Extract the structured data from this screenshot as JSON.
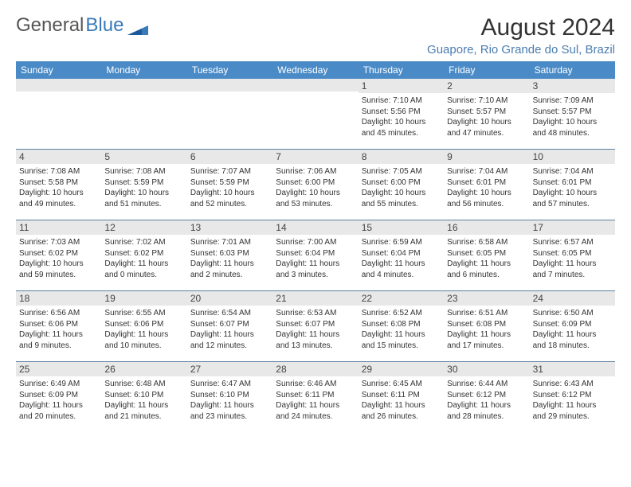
{
  "logo": {
    "word1": "General",
    "word2": "Blue"
  },
  "title": "August 2024",
  "location": "Guapore, Rio Grande do Sul, Brazil",
  "weekdays": [
    "Sunday",
    "Monday",
    "Tuesday",
    "Wednesday",
    "Thursday",
    "Friday",
    "Saturday"
  ],
  "colors": {
    "header_bg": "#4a8bc7",
    "daynum_bg": "#e8e8e8",
    "row_border": "#5a7fa0",
    "location_text": "#4a7db0",
    "logo_blue": "#3a7ab8"
  },
  "weeks": [
    [
      {
        "empty": true
      },
      {
        "empty": true
      },
      {
        "empty": true
      },
      {
        "empty": true
      },
      {
        "num": "1",
        "sunrise": "Sunrise: 7:10 AM",
        "sunset": "Sunset: 5:56 PM",
        "daylight1": "Daylight: 10 hours",
        "daylight2": "and 45 minutes."
      },
      {
        "num": "2",
        "sunrise": "Sunrise: 7:10 AM",
        "sunset": "Sunset: 5:57 PM",
        "daylight1": "Daylight: 10 hours",
        "daylight2": "and 47 minutes."
      },
      {
        "num": "3",
        "sunrise": "Sunrise: 7:09 AM",
        "sunset": "Sunset: 5:57 PM",
        "daylight1": "Daylight: 10 hours",
        "daylight2": "and 48 minutes."
      }
    ],
    [
      {
        "num": "4",
        "sunrise": "Sunrise: 7:08 AM",
        "sunset": "Sunset: 5:58 PM",
        "daylight1": "Daylight: 10 hours",
        "daylight2": "and 49 minutes."
      },
      {
        "num": "5",
        "sunrise": "Sunrise: 7:08 AM",
        "sunset": "Sunset: 5:59 PM",
        "daylight1": "Daylight: 10 hours",
        "daylight2": "and 51 minutes."
      },
      {
        "num": "6",
        "sunrise": "Sunrise: 7:07 AM",
        "sunset": "Sunset: 5:59 PM",
        "daylight1": "Daylight: 10 hours",
        "daylight2": "and 52 minutes."
      },
      {
        "num": "7",
        "sunrise": "Sunrise: 7:06 AM",
        "sunset": "Sunset: 6:00 PM",
        "daylight1": "Daylight: 10 hours",
        "daylight2": "and 53 minutes."
      },
      {
        "num": "8",
        "sunrise": "Sunrise: 7:05 AM",
        "sunset": "Sunset: 6:00 PM",
        "daylight1": "Daylight: 10 hours",
        "daylight2": "and 55 minutes."
      },
      {
        "num": "9",
        "sunrise": "Sunrise: 7:04 AM",
        "sunset": "Sunset: 6:01 PM",
        "daylight1": "Daylight: 10 hours",
        "daylight2": "and 56 minutes."
      },
      {
        "num": "10",
        "sunrise": "Sunrise: 7:04 AM",
        "sunset": "Sunset: 6:01 PM",
        "daylight1": "Daylight: 10 hours",
        "daylight2": "and 57 minutes."
      }
    ],
    [
      {
        "num": "11",
        "sunrise": "Sunrise: 7:03 AM",
        "sunset": "Sunset: 6:02 PM",
        "daylight1": "Daylight: 10 hours",
        "daylight2": "and 59 minutes."
      },
      {
        "num": "12",
        "sunrise": "Sunrise: 7:02 AM",
        "sunset": "Sunset: 6:02 PM",
        "daylight1": "Daylight: 11 hours",
        "daylight2": "and 0 minutes."
      },
      {
        "num": "13",
        "sunrise": "Sunrise: 7:01 AM",
        "sunset": "Sunset: 6:03 PM",
        "daylight1": "Daylight: 11 hours",
        "daylight2": "and 2 minutes."
      },
      {
        "num": "14",
        "sunrise": "Sunrise: 7:00 AM",
        "sunset": "Sunset: 6:04 PM",
        "daylight1": "Daylight: 11 hours",
        "daylight2": "and 3 minutes."
      },
      {
        "num": "15",
        "sunrise": "Sunrise: 6:59 AM",
        "sunset": "Sunset: 6:04 PM",
        "daylight1": "Daylight: 11 hours",
        "daylight2": "and 4 minutes."
      },
      {
        "num": "16",
        "sunrise": "Sunrise: 6:58 AM",
        "sunset": "Sunset: 6:05 PM",
        "daylight1": "Daylight: 11 hours",
        "daylight2": "and 6 minutes."
      },
      {
        "num": "17",
        "sunrise": "Sunrise: 6:57 AM",
        "sunset": "Sunset: 6:05 PM",
        "daylight1": "Daylight: 11 hours",
        "daylight2": "and 7 minutes."
      }
    ],
    [
      {
        "num": "18",
        "sunrise": "Sunrise: 6:56 AM",
        "sunset": "Sunset: 6:06 PM",
        "daylight1": "Daylight: 11 hours",
        "daylight2": "and 9 minutes."
      },
      {
        "num": "19",
        "sunrise": "Sunrise: 6:55 AM",
        "sunset": "Sunset: 6:06 PM",
        "daylight1": "Daylight: 11 hours",
        "daylight2": "and 10 minutes."
      },
      {
        "num": "20",
        "sunrise": "Sunrise: 6:54 AM",
        "sunset": "Sunset: 6:07 PM",
        "daylight1": "Daylight: 11 hours",
        "daylight2": "and 12 minutes."
      },
      {
        "num": "21",
        "sunrise": "Sunrise: 6:53 AM",
        "sunset": "Sunset: 6:07 PM",
        "daylight1": "Daylight: 11 hours",
        "daylight2": "and 13 minutes."
      },
      {
        "num": "22",
        "sunrise": "Sunrise: 6:52 AM",
        "sunset": "Sunset: 6:08 PM",
        "daylight1": "Daylight: 11 hours",
        "daylight2": "and 15 minutes."
      },
      {
        "num": "23",
        "sunrise": "Sunrise: 6:51 AM",
        "sunset": "Sunset: 6:08 PM",
        "daylight1": "Daylight: 11 hours",
        "daylight2": "and 17 minutes."
      },
      {
        "num": "24",
        "sunrise": "Sunrise: 6:50 AM",
        "sunset": "Sunset: 6:09 PM",
        "daylight1": "Daylight: 11 hours",
        "daylight2": "and 18 minutes."
      }
    ],
    [
      {
        "num": "25",
        "sunrise": "Sunrise: 6:49 AM",
        "sunset": "Sunset: 6:09 PM",
        "daylight1": "Daylight: 11 hours",
        "daylight2": "and 20 minutes."
      },
      {
        "num": "26",
        "sunrise": "Sunrise: 6:48 AM",
        "sunset": "Sunset: 6:10 PM",
        "daylight1": "Daylight: 11 hours",
        "daylight2": "and 21 minutes."
      },
      {
        "num": "27",
        "sunrise": "Sunrise: 6:47 AM",
        "sunset": "Sunset: 6:10 PM",
        "daylight1": "Daylight: 11 hours",
        "daylight2": "and 23 minutes."
      },
      {
        "num": "28",
        "sunrise": "Sunrise: 6:46 AM",
        "sunset": "Sunset: 6:11 PM",
        "daylight1": "Daylight: 11 hours",
        "daylight2": "and 24 minutes."
      },
      {
        "num": "29",
        "sunrise": "Sunrise: 6:45 AM",
        "sunset": "Sunset: 6:11 PM",
        "daylight1": "Daylight: 11 hours",
        "daylight2": "and 26 minutes."
      },
      {
        "num": "30",
        "sunrise": "Sunrise: 6:44 AM",
        "sunset": "Sunset: 6:12 PM",
        "daylight1": "Daylight: 11 hours",
        "daylight2": "and 28 minutes."
      },
      {
        "num": "31",
        "sunrise": "Sunrise: 6:43 AM",
        "sunset": "Sunset: 6:12 PM",
        "daylight1": "Daylight: 11 hours",
        "daylight2": "and 29 minutes."
      }
    ]
  ]
}
